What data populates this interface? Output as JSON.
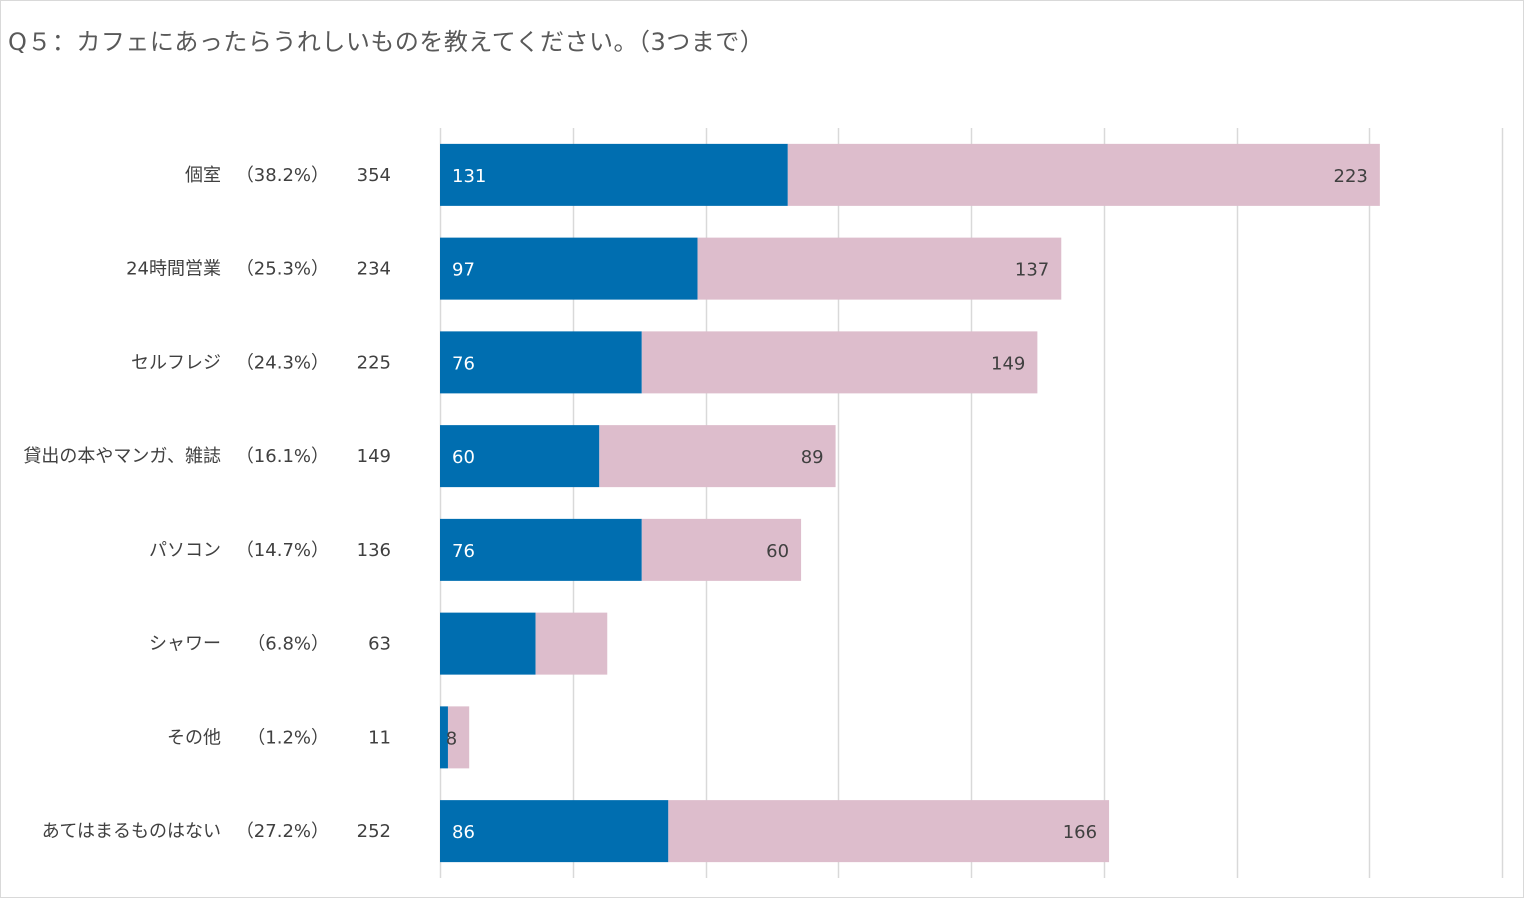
{
  "title": "Q５：カフェにあったらうれしいものを教えてください。（3つまで）",
  "chart_data": {
    "type": "bar",
    "orientation": "horizontal",
    "stacked": true,
    "title": "Q５：カフェにあったらうれしいものを教えてください。（3つまで）",
    "xlim": [
      0,
      400
    ],
    "x_gridlines": [
      0,
      50,
      100,
      150,
      200,
      250,
      300,
      350,
      400
    ],
    "grid": true,
    "categories": [
      {
        "label": "個室",
        "pct": "（38.2%）",
        "total": "354"
      },
      {
        "label": "24時間営業",
        "pct": "（25.3%）",
        "total": "234"
      },
      {
        "label": "セルフレジ",
        "pct": "（24.3%）",
        "total": "225"
      },
      {
        "label": "貸出の本やマンガ、雑誌",
        "pct": "（16.1%）",
        "total": "149"
      },
      {
        "label": "パソコン",
        "pct": "（14.7%）",
        "total": "136"
      },
      {
        "label": "シャワー",
        "pct": "（6.8%）",
        "total": "63"
      },
      {
        "label": "その他",
        "pct": "（1.2%）",
        "total": "11"
      },
      {
        "label": "あてはまるものはない",
        "pct": "（27.2%）",
        "total": "252"
      }
    ],
    "series": [
      {
        "name": "series-1",
        "color": "#006eb0",
        "label_color": "#ffffff",
        "values": [
          131,
          97,
          76,
          60,
          76,
          36,
          3,
          86
        ],
        "labels": [
          "131",
          "97",
          "76",
          "60",
          "76",
          "",
          "",
          "86"
        ]
      },
      {
        "name": "series-2",
        "color": "#ddbdcc",
        "label_color": "#404040",
        "values": [
          223,
          137,
          149,
          89,
          60,
          27,
          8,
          166
        ],
        "labels": [
          "223",
          "137",
          "149",
          "89",
          "60",
          "",
          "8",
          "166"
        ]
      }
    ]
  }
}
